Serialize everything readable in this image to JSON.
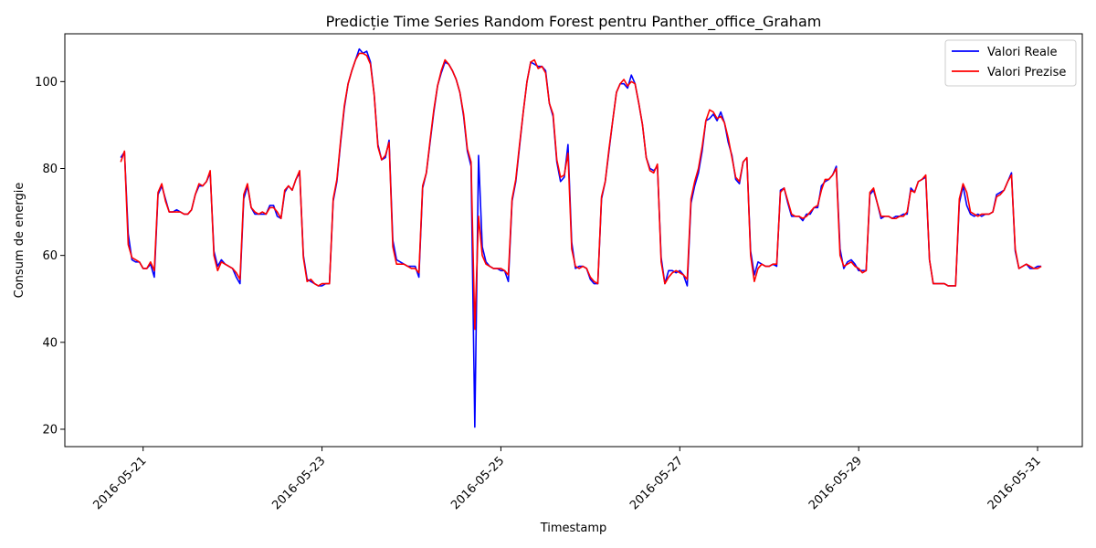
{
  "chart_data": {
    "type": "line",
    "title": "Predicție Time Series Random Forest pentru Panther_office_Graham",
    "xlabel": "Timestamp",
    "ylabel": "Consum de energie",
    "x_ticks": [
      "2016-05-21",
      "2016-05-23",
      "2016-05-25",
      "2016-05-27",
      "2016-05-29",
      "2016-05-31"
    ],
    "y_ticks": [
      20,
      40,
      60,
      80,
      100
    ],
    "xlim": [
      "2016-05-20 03:00",
      "2016-05-31 12:00"
    ],
    "ylim": [
      16,
      111
    ],
    "legend_position": "top-right",
    "grid": false,
    "x_start": "2016-05-20 18:00",
    "x_step_hours": 1,
    "series": [
      {
        "name": "Valori Reale",
        "color": "#0000ff",
        "values": [
          82.5,
          83.8,
          65,
          59,
          58.5,
          58.5,
          57,
          57,
          58,
          55,
          74,
          76,
          73,
          70,
          70,
          70.5,
          70,
          69.5,
          69.5,
          70.5,
          74,
          76,
          76,
          77,
          79,
          61,
          57.5,
          59,
          58,
          57.5,
          57,
          55,
          53.5,
          73,
          76,
          71,
          69.5,
          69.5,
          69.5,
          69.5,
          71.5,
          71.5,
          69,
          68.5,
          74.5,
          76,
          75,
          77.5,
          79,
          60,
          54.5,
          54,
          53.5,
          53,
          53,
          53.5,
          53.5,
          72.5,
          77,
          86,
          94,
          99.5,
          102.5,
          105,
          107.5,
          106.5,
          107,
          104.5,
          97,
          85.5,
          82,
          82.5,
          86.5,
          63.5,
          59,
          58.5,
          58,
          57.5,
          57.5,
          57.5,
          55,
          75.5,
          79,
          86,
          93,
          99,
          102,
          104.5,
          104,
          102.5,
          100.5,
          97.5,
          92,
          84,
          80.5,
          20.5,
          83,
          62,
          58.5,
          57.5,
          57,
          57,
          56.5,
          56.5,
          54,
          72.5,
          77,
          85,
          93,
          100,
          104.5,
          104,
          103.5,
          103.5,
          102.5,
          95,
          92,
          81.5,
          77,
          78,
          85.5,
          63,
          57,
          57.5,
          57.5,
          57,
          54.5,
          53.5,
          53.5,
          73,
          77,
          84,
          91,
          97.5,
          99.5,
          99.5,
          98.5,
          101.5,
          99.5,
          95,
          90,
          82.5,
          80,
          79.5,
          80.5,
          59.5,
          53.5,
          56.5,
          56.5,
          56,
          56.5,
          55.5,
          53,
          72,
          76,
          79,
          84,
          91,
          91.5,
          92.5,
          91,
          93,
          90.5,
          86,
          83,
          77.5,
          76.5,
          81.5,
          82.5,
          61,
          55.5,
          58.5,
          58,
          57.5,
          57.5,
          58,
          57.5,
          75,
          75.5,
          72,
          69,
          69,
          69,
          68,
          69.5,
          69.5,
          71,
          71,
          76,
          77,
          77.5,
          78.5,
          80.5,
          61.5,
          57,
          58.5,
          59,
          58,
          56.5,
          56.5,
          56.5,
          74,
          75,
          72,
          68.5,
          69,
          69,
          68.5,
          69,
          69,
          69.5,
          69.5,
          75.5,
          74.5,
          77,
          77.5,
          78,
          59,
          53.5,
          53.5,
          53.5,
          53.5,
          53,
          53,
          53,
          72,
          76,
          71.5,
          69.5,
          69,
          69.5,
          69,
          69.5,
          69.5,
          70,
          74,
          74.5,
          75,
          77,
          79,
          61,
          57,
          57.5,
          58,
          57,
          57,
          57.5,
          57.5
        ]
      },
      {
        "name": "Valori Prezise",
        "color": "#ff0000",
        "values": [
          81.5,
          84,
          62.5,
          59.5,
          59,
          58.5,
          57,
          57,
          58.5,
          56.5,
          74.5,
          76.5,
          72.5,
          70,
          70,
          70,
          70,
          69.5,
          69.5,
          70.5,
          74,
          76.5,
          76,
          77,
          79.5,
          60,
          56.5,
          58.5,
          58,
          57.5,
          57,
          56,
          54.5,
          74,
          76.5,
          71,
          70,
          69.5,
          70,
          69.5,
          71,
          71,
          70,
          68.5,
          75,
          76,
          75,
          77.5,
          79.5,
          59.5,
          54,
          54.5,
          53.5,
          53,
          53.5,
          53.5,
          53.5,
          73,
          77.5,
          86.5,
          94.5,
          99.5,
          102.5,
          105,
          106.5,
          106.5,
          106,
          104,
          97,
          85,
          82,
          83,
          86,
          62,
          58,
          58,
          58,
          57.5,
          57,
          57,
          56,
          76,
          79,
          86.5,
          93.5,
          99,
          102.5,
          105,
          104,
          102.5,
          100.5,
          97.5,
          92.5,
          84.5,
          81.5,
          43,
          69,
          60,
          58,
          57.5,
          57,
          57,
          57,
          56.5,
          55.5,
          73,
          77.5,
          85.5,
          93,
          100,
          104.5,
          105,
          103,
          103.5,
          102,
          95,
          92.5,
          82,
          78,
          78.5,
          83.5,
          61.5,
          57.5,
          57,
          57.5,
          57,
          55,
          54,
          53.5,
          73.5,
          77,
          84.5,
          91,
          97.5,
          99.5,
          100.5,
          99,
          100,
          99.5,
          95,
          90,
          82.5,
          79.5,
          79,
          81,
          58.5,
          53.5,
          55,
          56,
          56.5,
          56,
          55.5,
          54.5,
          73,
          77,
          80,
          85,
          91,
          93.5,
          93,
          91.5,
          92,
          90.5,
          87,
          82.5,
          78,
          77,
          81.5,
          82.5,
          60,
          54,
          57,
          58,
          57.5,
          57.5,
          58,
          58,
          74.5,
          75.5,
          72.5,
          69.5,
          69,
          69,
          68.5,
          69,
          70,
          71,
          71.5,
          75,
          77.5,
          77.5,
          78.5,
          80,
          60,
          57.5,
          58,
          58.5,
          57.5,
          57,
          56,
          56.5,
          74.5,
          75.5,
          72,
          69,
          69,
          69,
          68.5,
          68.5,
          69,
          69,
          70,
          75,
          74.5,
          77,
          77.5,
          78.5,
          59,
          53.5,
          53.5,
          53.5,
          53.5,
          53,
          53,
          53,
          73,
          76.5,
          74.5,
          70,
          69.5,
          69,
          69.5,
          69.5,
          69.5,
          70,
          73.5,
          74,
          75,
          77,
          78.5,
          61.5,
          57,
          57.5,
          58,
          57.5,
          57,
          57,
          57.5
        ]
      }
    ]
  }
}
